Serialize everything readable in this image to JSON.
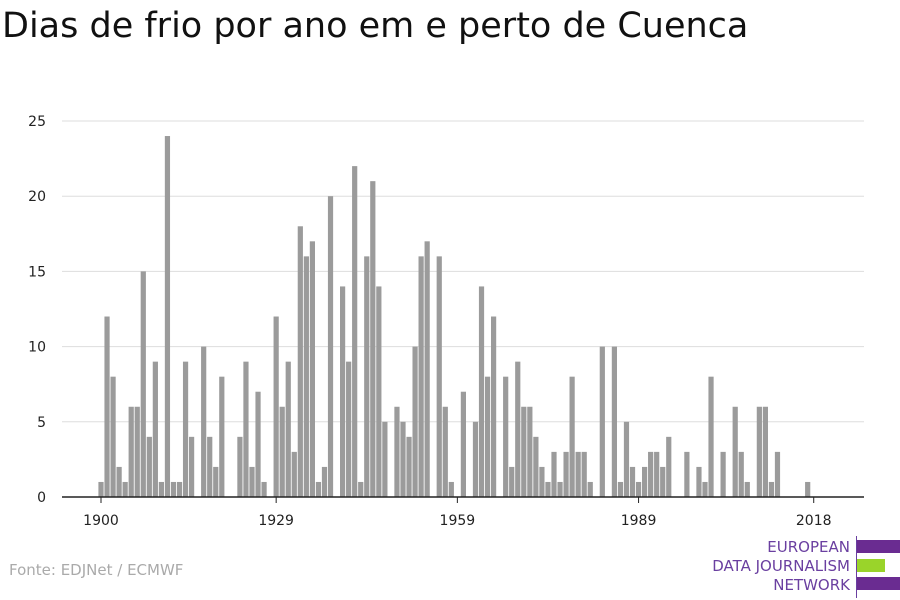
{
  "title": "Dias de frio por ano em e perto de Cuenca",
  "source": "Fonte: EDJNet / ECMWF",
  "logo": {
    "lines": [
      "EUROPEAN",
      "DATA JOURNALISM",
      "NETWORK"
    ],
    "colors": [
      "#6a2c91",
      "#9ad42a",
      "#6a2c91"
    ]
  },
  "chart_data": {
    "type": "bar",
    "title": "Dias de frio por ano em e perto de Cuenca",
    "xlabel": "",
    "ylabel": "",
    "bar_color": "#9b9b9b",
    "grid": true,
    "ylim": [
      0,
      25
    ],
    "yticks": [
      0,
      5,
      10,
      15,
      20,
      25
    ],
    "xticks": [
      1900,
      1929,
      1959,
      1989,
      2018
    ],
    "x": [
      1900,
      1901,
      1902,
      1903,
      1904,
      1905,
      1906,
      1907,
      1908,
      1909,
      1910,
      1911,
      1912,
      1913,
      1914,
      1915,
      1916,
      1917,
      1918,
      1919,
      1920,
      1921,
      1922,
      1923,
      1924,
      1925,
      1926,
      1927,
      1928,
      1929,
      1930,
      1931,
      1932,
      1933,
      1934,
      1935,
      1936,
      1937,
      1938,
      1939,
      1940,
      1941,
      1942,
      1943,
      1944,
      1945,
      1946,
      1947,
      1948,
      1949,
      1950,
      1951,
      1952,
      1953,
      1954,
      1955,
      1956,
      1957,
      1958,
      1959,
      1960,
      1961,
      1962,
      1963,
      1964,
      1965,
      1966,
      1967,
      1968,
      1969,
      1970,
      1971,
      1972,
      1973,
      1974,
      1975,
      1976,
      1977,
      1978,
      1979,
      1980,
      1981,
      1982,
      1983,
      1984,
      1985,
      1986,
      1987,
      1988,
      1989,
      1990,
      1991,
      1992,
      1993,
      1994,
      1995,
      1996,
      1997,
      1998,
      1999,
      2000,
      2001,
      2002,
      2003,
      2004,
      2005,
      2006,
      2007,
      2008,
      2009,
      2010,
      2011,
      2012,
      2013,
      2014,
      2015,
      2016,
      2017,
      2018
    ],
    "values": [
      1,
      12,
      8,
      2,
      1,
      6,
      6,
      15,
      4,
      9,
      1,
      24,
      1,
      1,
      9,
      4,
      0,
      10,
      4,
      2,
      8,
      0,
      0,
      4,
      9,
      2,
      7,
      1,
      0,
      12,
      6,
      9,
      3,
      18,
      16,
      17,
      1,
      2,
      20,
      0,
      14,
      9,
      22,
      1,
      16,
      21,
      14,
      5,
      0,
      6,
      5,
      4,
      10,
      16,
      17,
      0,
      16,
      6,
      1,
      0,
      7,
      0,
      5,
      14,
      8,
      12,
      0,
      8,
      2,
      9,
      6,
      6,
      4,
      2,
      1,
      3,
      1,
      3,
      8,
      3,
      3,
      1,
      0,
      10,
      0,
      10,
      1,
      5,
      2,
      1,
      2,
      3,
      3,
      2,
      4,
      0,
      0,
      3,
      0,
      2,
      1,
      8,
      0,
      3,
      0,
      6,
      3,
      1,
      0,
      6,
      6,
      1,
      3,
      0,
      0,
      0,
      0,
      1,
      0
    ]
  }
}
